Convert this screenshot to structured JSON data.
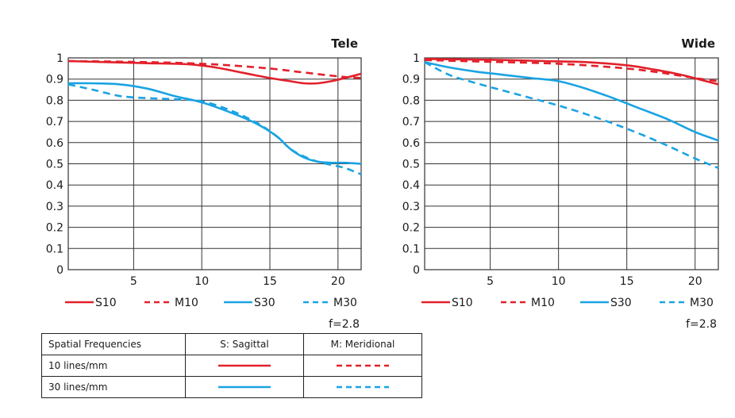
{
  "chart_data": [
    {
      "type": "line",
      "title": "Tele",
      "xlim": [
        0.2,
        21.7
      ],
      "ylim": [
        0,
        1
      ],
      "x_ticks": [
        "5",
        "10",
        "15",
        "20"
      ],
      "y_ticks": [
        "0",
        "0.1",
        "0.2",
        "0.3",
        "0.4",
        "0.5",
        "0.6",
        "0.7",
        "0.8",
        "0.9",
        "1"
      ],
      "aperture": "f=2.8",
      "grid": true,
      "series": [
        {
          "name": "S10",
          "style": "solid",
          "color": "#e2202b",
          "x": [
            0.2,
            3,
            6,
            9,
            11,
            13,
            15,
            16.5,
            17.5,
            18.5,
            19.5,
            20.5,
            21.7
          ],
          "y": [
            0.985,
            0.98,
            0.975,
            0.97,
            0.955,
            0.93,
            0.905,
            0.89,
            0.88,
            0.88,
            0.89,
            0.905,
            0.925
          ]
        },
        {
          "name": "M10",
          "style": "dashed",
          "color": "#e2202b",
          "x": [
            0.2,
            3,
            6,
            9,
            12,
            15,
            17,
            19,
            20.5,
            21.7
          ],
          "y": [
            0.985,
            0.983,
            0.98,
            0.975,
            0.965,
            0.95,
            0.935,
            0.92,
            0.91,
            0.905
          ]
        },
        {
          "name": "S30",
          "style": "solid",
          "color": "#1aa3e3",
          "x": [
            0.2,
            2,
            4,
            6,
            8,
            10,
            12,
            14,
            15.5,
            16.5,
            17.5,
            18.5,
            19.5,
            20.5,
            21.7
          ],
          "y": [
            0.88,
            0.88,
            0.875,
            0.855,
            0.82,
            0.79,
            0.745,
            0.69,
            0.63,
            0.57,
            0.53,
            0.51,
            0.505,
            0.505,
            0.5
          ]
        },
        {
          "name": "M30",
          "style": "dashed",
          "color": "#1aa3e3",
          "x": [
            0.2,
            2,
            4,
            6,
            8,
            10,
            12,
            14,
            15.5,
            16.5,
            17.5,
            18.5,
            19.5,
            20.5,
            21.7
          ],
          "y": [
            0.875,
            0.85,
            0.82,
            0.81,
            0.805,
            0.795,
            0.755,
            0.695,
            0.63,
            0.57,
            0.535,
            0.51,
            0.495,
            0.48,
            0.45
          ]
        }
      ]
    },
    {
      "type": "line",
      "title": "Wide",
      "xlim": [
        0.2,
        21.7
      ],
      "ylim": [
        0,
        1
      ],
      "x_ticks": [
        "5",
        "10",
        "15",
        "20"
      ],
      "y_ticks": [
        "0",
        "0.1",
        "0.2",
        "0.3",
        "0.4",
        "0.5",
        "0.6",
        "0.7",
        "0.8",
        "0.9",
        "1"
      ],
      "aperture": "f=2.8",
      "grid": true,
      "series": [
        {
          "name": "S10",
          "style": "solid",
          "color": "#e2202b",
          "x": [
            0.2,
            3,
            6,
            9,
            12,
            15,
            17,
            19,
            20.5,
            21.7
          ],
          "y": [
            0.995,
            0.993,
            0.99,
            0.985,
            0.98,
            0.965,
            0.945,
            0.92,
            0.895,
            0.875
          ]
        },
        {
          "name": "M10",
          "style": "dashed",
          "color": "#e2202b",
          "x": [
            0.2,
            3,
            6,
            9,
            12,
            15,
            17,
            19,
            20.5,
            21.7
          ],
          "y": [
            0.99,
            0.985,
            0.98,
            0.975,
            0.965,
            0.95,
            0.935,
            0.915,
            0.9,
            0.89
          ]
        },
        {
          "name": "S30",
          "style": "solid",
          "color": "#1aa3e3",
          "x": [
            0.2,
            2,
            4,
            6,
            8,
            10,
            12,
            14,
            16,
            18,
            20,
            21.7
          ],
          "y": [
            0.98,
            0.955,
            0.935,
            0.92,
            0.905,
            0.89,
            0.855,
            0.81,
            0.76,
            0.71,
            0.65,
            0.61
          ]
        },
        {
          "name": "M30",
          "style": "dashed",
          "color": "#1aa3e3",
          "x": [
            0.2,
            2,
            4,
            6,
            8,
            10,
            12,
            14,
            16,
            18,
            20,
            21.7
          ],
          "y": [
            0.98,
            0.92,
            0.88,
            0.845,
            0.81,
            0.775,
            0.735,
            0.69,
            0.64,
            0.585,
            0.525,
            0.48
          ]
        }
      ]
    }
  ],
  "table": {
    "headers": [
      "Spatial Frequencies",
      "S: Sagittal",
      "M: Meridional"
    ],
    "rows": [
      {
        "label": "10 lines/mm",
        "color": "#e2202b"
      },
      {
        "label": "30 lines/mm",
        "color": "#1aa3e3"
      }
    ]
  }
}
